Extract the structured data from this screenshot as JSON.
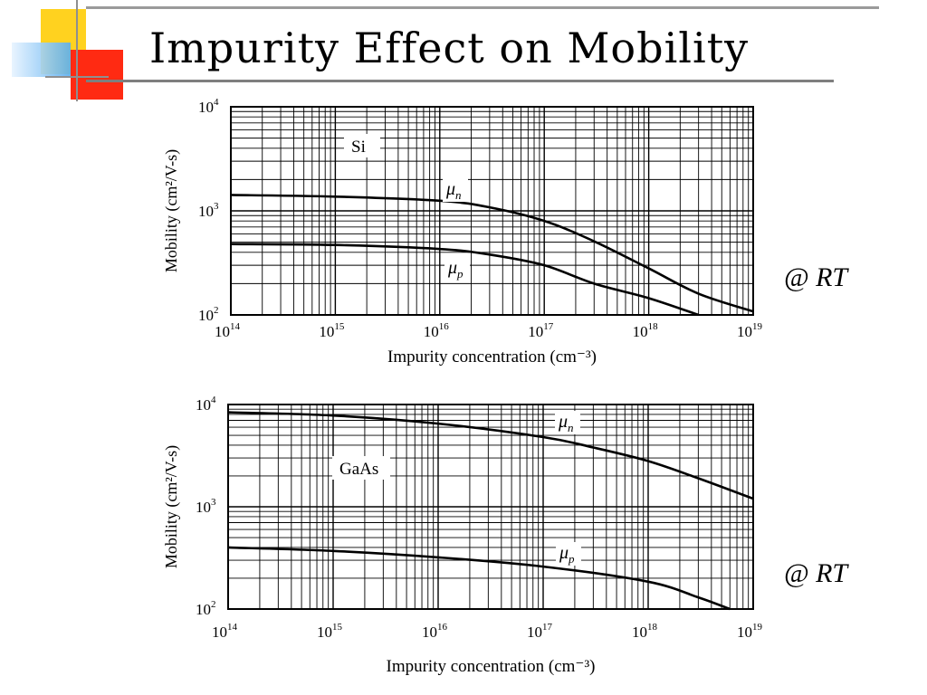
{
  "slide": {
    "title": "Impurity Effect on Mobility",
    "annotations": [
      "@ RT",
      "@ RT"
    ],
    "colors": {
      "accent_yellow": "#ffd21f",
      "accent_red": "#ff2a12",
      "accent_blue": "#5aaef0",
      "rule_gray": "#8f8f8f"
    }
  },
  "chart_data": [
    {
      "type": "line",
      "material_label": "Si",
      "xlabel": "Impurity concentration (cm⁻³)",
      "ylabel": "Mobility (cm²/V-s)",
      "x_scale": "log",
      "y_scale": "log",
      "xlim": [
        100000000000000.0,
        1e+19
      ],
      "ylim": [
        100,
        10000
      ],
      "x_ticks": [
        {
          "base": "10",
          "exp": "14"
        },
        {
          "base": "10",
          "exp": "15"
        },
        {
          "base": "10",
          "exp": "16"
        },
        {
          "base": "10",
          "exp": "17"
        },
        {
          "base": "10",
          "exp": "18"
        },
        {
          "base": "10",
          "exp": "19"
        }
      ],
      "y_ticks": [
        {
          "base": "10",
          "exp": "2",
          "value": 100
        },
        {
          "base": "10",
          "exp": "3",
          "value": 1000
        },
        {
          "base": "10",
          "exp": "4",
          "value": 10000
        }
      ],
      "grid": true,
      "series": [
        {
          "name": "μ",
          "sub": "n",
          "x": [
            100000000000000.0,
            1000000000000000.0,
            1e+16,
            3e+16,
            1e+17,
            3e+17,
            1e+18,
            3e+18,
            1e+19
          ],
          "y": [
            1420,
            1370,
            1250,
            1080,
            800,
            510,
            280,
            160,
            108
          ]
        },
        {
          "name": "μ",
          "sub": "p",
          "x": [
            100000000000000.0,
            1000000000000000.0,
            1e+16,
            3e+16,
            1e+17,
            3e+17,
            1e+18,
            3e+18
          ],
          "y": [
            480,
            470,
            430,
            380,
            300,
            200,
            145,
            100
          ]
        }
      ]
    },
    {
      "type": "line",
      "material_label": "GaAs",
      "xlabel": "Impurity concentration (cm⁻³)",
      "ylabel": "Mobility (cm²/V-s)",
      "x_scale": "log",
      "y_scale": "log",
      "xlim": [
        100000000000000.0,
        1e+19
      ],
      "ylim": [
        100,
        10000
      ],
      "x_ticks": [
        {
          "base": "10",
          "exp": "14"
        },
        {
          "base": "10",
          "exp": "15"
        },
        {
          "base": "10",
          "exp": "16"
        },
        {
          "base": "10",
          "exp": "17"
        },
        {
          "base": "10",
          "exp": "18"
        },
        {
          "base": "10",
          "exp": "19"
        }
      ],
      "y_ticks": [
        {
          "base": "10",
          "exp": "2",
          "value": 100
        },
        {
          "base": "10",
          "exp": "3",
          "value": 1000
        },
        {
          "base": "10",
          "exp": "4",
          "value": 10000
        }
      ],
      "grid": true,
      "series": [
        {
          "name": "μ",
          "sub": "n",
          "x": [
            100000000000000.0,
            1000000000000000.0,
            1e+16,
            1e+17,
            3e+17,
            1e+18,
            3e+18,
            1e+19
          ],
          "y": [
            8400,
            7800,
            6500,
            4800,
            3800,
            2800,
            1900,
            1200
          ]
        },
        {
          "name": "μ",
          "sub": "p",
          "x": [
            100000000000000.0,
            1000000000000000.0,
            1e+16,
            1e+17,
            1e+18,
            3e+18,
            6e+18
          ],
          "y": [
            400,
            370,
            320,
            260,
            185,
            130,
            100
          ]
        }
      ]
    }
  ]
}
